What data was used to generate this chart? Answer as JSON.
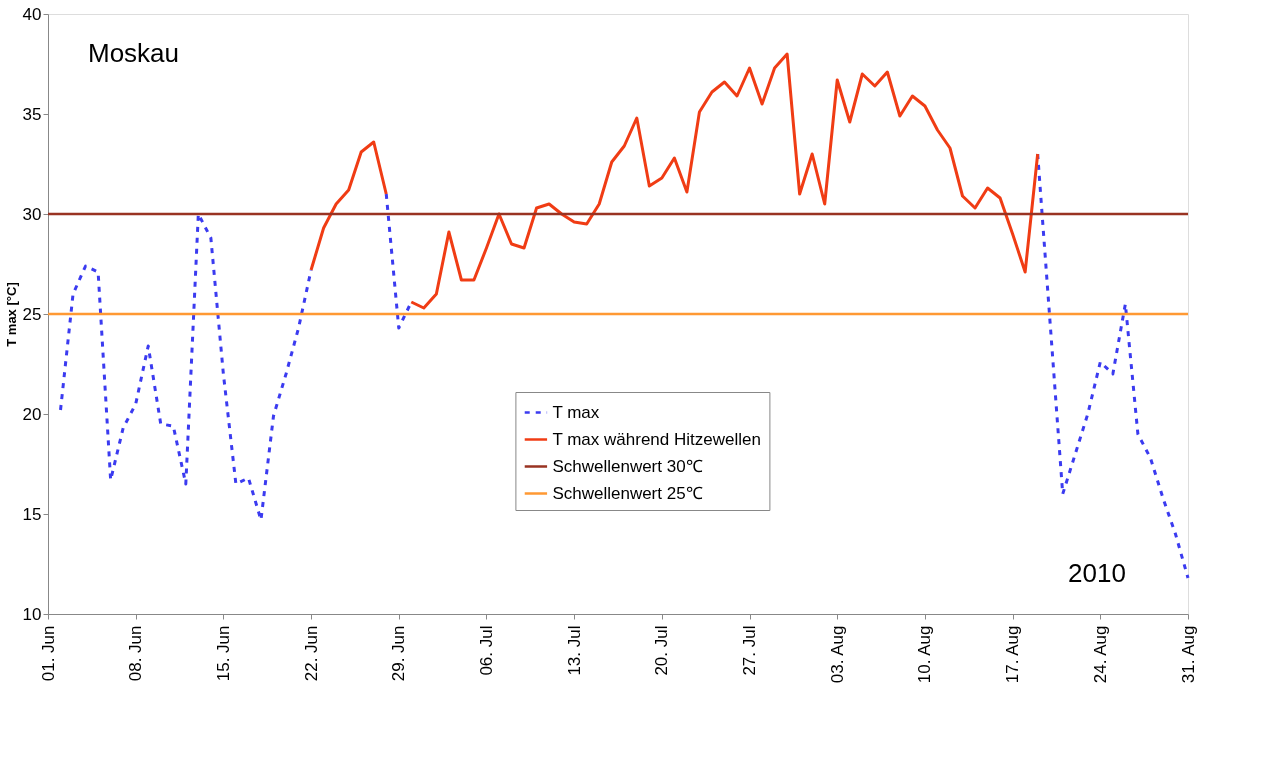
{
  "chart_data": {
    "type": "line",
    "ylabel": "T max [°C]",
    "annotations": [
      "Moskau",
      "2010"
    ],
    "x": [
      "2010-06-02",
      "2010-06-03",
      "2010-06-04",
      "2010-06-05",
      "2010-06-06",
      "2010-06-07",
      "2010-06-08",
      "2010-06-09",
      "2010-06-10",
      "2010-06-11",
      "2010-06-12",
      "2010-06-13",
      "2010-06-14",
      "2010-06-15",
      "2010-06-16",
      "2010-06-17",
      "2010-06-18",
      "2010-06-19",
      "2010-06-20",
      "2010-06-21",
      "2010-06-22",
      "2010-06-23",
      "2010-06-24",
      "2010-06-25",
      "2010-06-26",
      "2010-06-27",
      "2010-06-28",
      "2010-06-29",
      "2010-06-30",
      "2010-07-01",
      "2010-07-02",
      "2010-07-03",
      "2010-07-04",
      "2010-07-05",
      "2010-07-06",
      "2010-07-07",
      "2010-07-08",
      "2010-07-09",
      "2010-07-10",
      "2010-07-11",
      "2010-07-12",
      "2010-07-13",
      "2010-07-14",
      "2010-07-15",
      "2010-07-16",
      "2010-07-17",
      "2010-07-18",
      "2010-07-19",
      "2010-07-20",
      "2010-07-21",
      "2010-07-22",
      "2010-07-23",
      "2010-07-24",
      "2010-07-25",
      "2010-07-26",
      "2010-07-27",
      "2010-07-28",
      "2010-07-29",
      "2010-07-30",
      "2010-07-31",
      "2010-08-01",
      "2010-08-02",
      "2010-08-03",
      "2010-08-04",
      "2010-08-05",
      "2010-08-06",
      "2010-08-07",
      "2010-08-08",
      "2010-08-09",
      "2010-08-10",
      "2010-08-11",
      "2010-08-12",
      "2010-08-13",
      "2010-08-14",
      "2010-08-15",
      "2010-08-16",
      "2010-08-17",
      "2010-08-18",
      "2010-08-19",
      "2010-08-20",
      "2010-08-21",
      "2010-08-22",
      "2010-08-23",
      "2010-08-24",
      "2010-08-25",
      "2010-08-26",
      "2010-08-27",
      "2010-08-28",
      "2010-08-29",
      "2010-08-30",
      "2010-08-31"
    ],
    "series": [
      {
        "name": "T max",
        "color": "#3b3bf0",
        "line_style": "dashed",
        "values": [
          20.2,
          26.0,
          27.4,
          27.1,
          16.7,
          19.3,
          20.5,
          23.4,
          19.5,
          19.4,
          16.5,
          30.0,
          28.8,
          22.0,
          16.5,
          16.8,
          14.7,
          19.9,
          22.0,
          24.3,
          27.2,
          null,
          null,
          null,
          null,
          null,
          31.0,
          24.3,
          25.6,
          null,
          null,
          null,
          null,
          null,
          null,
          null,
          null,
          null,
          null,
          null,
          null,
          null,
          null,
          null,
          null,
          null,
          null,
          null,
          null,
          null,
          null,
          null,
          null,
          null,
          null,
          null,
          null,
          null,
          null,
          null,
          null,
          null,
          null,
          null,
          null,
          null,
          null,
          null,
          null,
          null,
          null,
          null,
          null,
          null,
          null,
          null,
          null,
          null,
          33.0,
          24.5,
          16.0,
          18.0,
          20.0,
          22.6,
          22.0,
          25.5,
          19.0,
          17.8,
          15.8,
          14.0,
          11.8
        ]
      },
      {
        "name": "T max während Hitzewellen",
        "color": "#f03c14",
        "line_style": "solid",
        "values": [
          null,
          null,
          null,
          null,
          null,
          null,
          null,
          null,
          null,
          null,
          null,
          null,
          null,
          null,
          null,
          null,
          null,
          null,
          null,
          null,
          27.2,
          29.3,
          30.5,
          31.2,
          33.1,
          33.6,
          31.0,
          null,
          25.6,
          25.3,
          26.0,
          29.1,
          26.7,
          26.7,
          28.3,
          30.0,
          28.5,
          28.3,
          30.3,
          30.5,
          30.0,
          29.6,
          29.5,
          30.5,
          32.6,
          33.4,
          34.8,
          31.4,
          31.8,
          32.8,
          31.1,
          35.1,
          36.1,
          36.6,
          35.9,
          37.3,
          35.5,
          37.3,
          38.0,
          31.0,
          33.0,
          30.5,
          36.7,
          34.6,
          37.0,
          36.4,
          37.1,
          34.9,
          35.9,
          35.4,
          34.2,
          33.3,
          30.9,
          30.3,
          31.3,
          30.8,
          29.0,
          27.1,
          33.0,
          null,
          null,
          null,
          null,
          null,
          null,
          null,
          null,
          null,
          null,
          null,
          null
        ]
      }
    ],
    "ref_lines": [
      {
        "axis": "y",
        "value": 30,
        "label": "Schwellenwert 30℃",
        "color": "#993322"
      },
      {
        "axis": "y",
        "value": 25,
        "label": "Schwellenwert 25℃",
        "color": "#ff9933"
      }
    ],
    "xlim": [
      "2010-06-01",
      "2010-08-31"
    ],
    "xticks": [
      {
        "value": "2010-06-01",
        "label": "01. Jun"
      },
      {
        "value": "2010-06-08",
        "label": "08. Jun"
      },
      {
        "value": "2010-06-15",
        "label": "15. Jun"
      },
      {
        "value": "2010-06-22",
        "label": "22. Jun"
      },
      {
        "value": "2010-06-29",
        "label": "29. Jun"
      },
      {
        "value": "2010-07-06",
        "label": "06. Jul"
      },
      {
        "value": "2010-07-13",
        "label": "13. Jul"
      },
      {
        "value": "2010-07-20",
        "label": "20. Jul"
      },
      {
        "value": "2010-07-27",
        "label": "27. Jul"
      },
      {
        "value": "2010-08-03",
        "label": "03. Aug"
      },
      {
        "value": "2010-08-10",
        "label": "10. Aug"
      },
      {
        "value": "2010-08-17",
        "label": "17. Aug"
      },
      {
        "value": "2010-08-24",
        "label": "24. Aug"
      },
      {
        "value": "2010-08-31",
        "label": "31. Aug"
      }
    ],
    "ylim": [
      10,
      40
    ],
    "yticks": [
      10,
      15,
      20,
      25,
      30,
      35,
      40
    ],
    "grid": false,
    "legend": "bottom",
    "marker": "none"
  }
}
